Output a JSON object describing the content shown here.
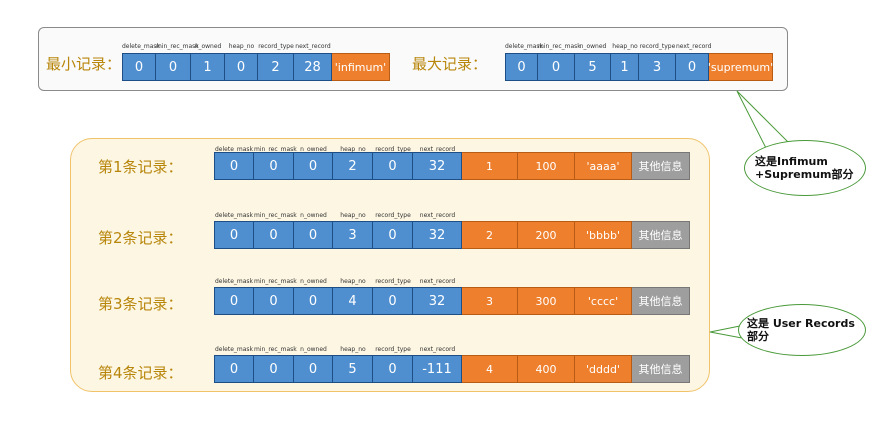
{
  "header_labels": [
    "delete_mask",
    "min_rec_mask",
    "n_owned",
    "heap_no",
    "record_type",
    "next_record"
  ],
  "infimum": {
    "label": "最小记录：",
    "values": [
      "0",
      "0",
      "1",
      "0",
      "2",
      "28"
    ],
    "data": "'infimum'"
  },
  "supremum": {
    "label": "最大记录：",
    "values": [
      "0",
      "0",
      "5",
      "1",
      "3",
      "0"
    ],
    "data": "'supremum'"
  },
  "user_records": [
    {
      "label": "第1条记录：",
      "header": [
        "0",
        "0",
        "0",
        "2",
        "0",
        "32"
      ],
      "data": [
        "1",
        "100",
        "'aaaa'"
      ],
      "other": "其他信息"
    },
    {
      "label": "第2条记录：",
      "header": [
        "0",
        "0",
        "0",
        "3",
        "0",
        "32"
      ],
      "data": [
        "2",
        "200",
        "'bbbb'"
      ],
      "other": "其他信息"
    },
    {
      "label": "第3条记录：",
      "header": [
        "0",
        "0",
        "0",
        "4",
        "0",
        "32"
      ],
      "data": [
        "3",
        "300",
        "'cccc'"
      ],
      "other": "其他信息"
    },
    {
      "label": "第4条记录：",
      "header": [
        "0",
        "0",
        "0",
        "5",
        "0",
        "-111"
      ],
      "data": [
        "4",
        "400",
        "'dddd'"
      ],
      "other": "其他信息"
    }
  ],
  "callouts": {
    "infimum_supremum": "这是Infimum +Supremum部分",
    "user_records": "这是 User Records部分"
  },
  "colors": {
    "header_cell": "#4f8fd0",
    "data_cell": "#ee7f2d",
    "other_cell": "#9e9e9e",
    "callout_border": "#4a9a3a"
  }
}
